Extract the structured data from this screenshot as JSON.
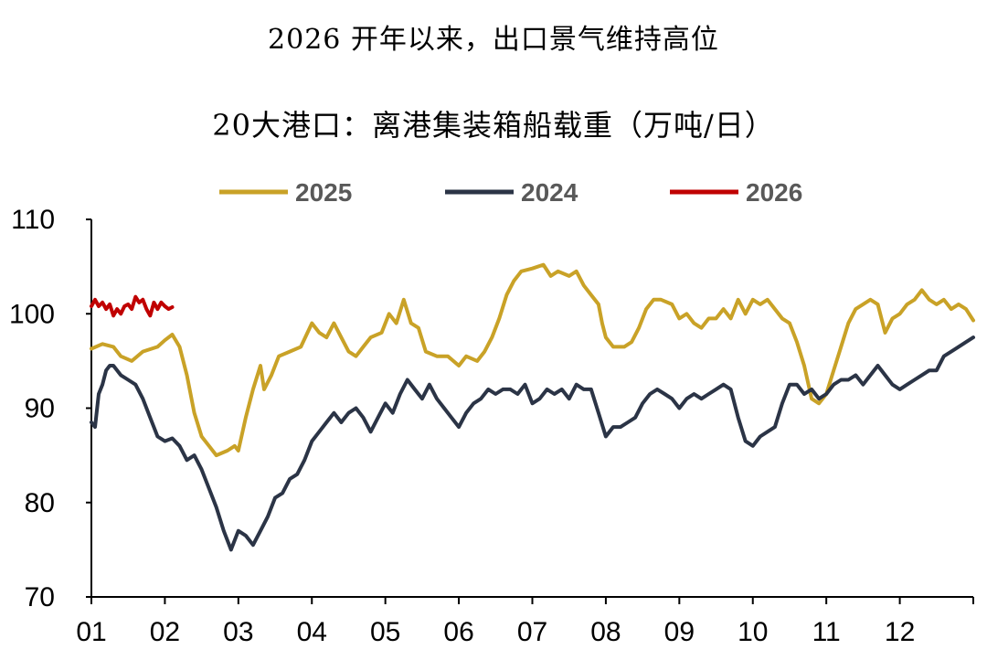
{
  "chart_data": {
    "type": "line",
    "title": "2026 开年以来，出口景气维持高位",
    "subtitle": "20大港口：离港集装箱船载重（万吨/日）",
    "xlabel": "",
    "ylabel": "",
    "ylim": [
      70,
      110
    ],
    "y_ticks": [
      "110",
      "100",
      "90",
      "80",
      "70"
    ],
    "x_tick_labels": [
      "01",
      "02",
      "03",
      "04",
      "05",
      "06",
      "07",
      "08",
      "09",
      "10",
      "11",
      "12"
    ],
    "x_range_months": [
      1,
      13
    ],
    "grid": false,
    "legend_position": "top",
    "series": [
      {
        "name": "2025",
        "color": "#C9A227",
        "points": [
          [
            1.0,
            96.3
          ],
          [
            1.15,
            96.8
          ],
          [
            1.3,
            96.5
          ],
          [
            1.4,
            95.5
          ],
          [
            1.55,
            95.0
          ],
          [
            1.7,
            96.0
          ],
          [
            1.9,
            96.5
          ],
          [
            2.0,
            97.2
          ],
          [
            2.1,
            97.8
          ],
          [
            2.2,
            96.5
          ],
          [
            2.3,
            93.5
          ],
          [
            2.4,
            89.5
          ],
          [
            2.5,
            87.0
          ],
          [
            2.6,
            86.0
          ],
          [
            2.7,
            85.0
          ],
          [
            2.85,
            85.5
          ],
          [
            2.95,
            86.0
          ],
          [
            3.0,
            85.5
          ],
          [
            3.1,
            89.0
          ],
          [
            3.2,
            92.0
          ],
          [
            3.3,
            94.5
          ],
          [
            3.35,
            92.0
          ],
          [
            3.45,
            93.5
          ],
          [
            3.55,
            95.5
          ],
          [
            3.7,
            96.0
          ],
          [
            3.85,
            96.5
          ],
          [
            4.0,
            99.0
          ],
          [
            4.1,
            98.0
          ],
          [
            4.2,
            97.5
          ],
          [
            4.3,
            99.0
          ],
          [
            4.4,
            97.5
          ],
          [
            4.5,
            96.0
          ],
          [
            4.6,
            95.5
          ],
          [
            4.7,
            96.5
          ],
          [
            4.8,
            97.5
          ],
          [
            4.95,
            98.0
          ],
          [
            5.05,
            100.0
          ],
          [
            5.15,
            99.0
          ],
          [
            5.25,
            101.5
          ],
          [
            5.35,
            99.0
          ],
          [
            5.45,
            98.5
          ],
          [
            5.55,
            96.0
          ],
          [
            5.7,
            95.5
          ],
          [
            5.85,
            95.5
          ],
          [
            6.0,
            94.5
          ],
          [
            6.1,
            95.5
          ],
          [
            6.25,
            95.0
          ],
          [
            6.35,
            96.0
          ],
          [
            6.45,
            97.5
          ],
          [
            6.55,
            99.5
          ],
          [
            6.65,
            102.0
          ],
          [
            6.75,
            103.5
          ],
          [
            6.85,
            104.5
          ],
          [
            7.0,
            104.8
          ],
          [
            7.15,
            105.2
          ],
          [
            7.25,
            104.0
          ],
          [
            7.35,
            104.5
          ],
          [
            7.5,
            104.0
          ],
          [
            7.6,
            104.5
          ],
          [
            7.7,
            103.0
          ],
          [
            7.8,
            102.0
          ],
          [
            7.9,
            101.0
          ],
          [
            7.95,
            99.0
          ],
          [
            8.0,
            97.5
          ],
          [
            8.1,
            96.5
          ],
          [
            8.25,
            96.5
          ],
          [
            8.35,
            97.0
          ],
          [
            8.45,
            98.5
          ],
          [
            8.55,
            100.5
          ],
          [
            8.65,
            101.5
          ],
          [
            8.75,
            101.5
          ],
          [
            8.9,
            101.0
          ],
          [
            9.0,
            99.5
          ],
          [
            9.1,
            100.0
          ],
          [
            9.2,
            99.0
          ],
          [
            9.3,
            98.5
          ],
          [
            9.4,
            99.5
          ],
          [
            9.5,
            99.5
          ],
          [
            9.6,
            100.5
          ],
          [
            9.7,
            99.5
          ],
          [
            9.8,
            101.5
          ],
          [
            9.9,
            100.0
          ],
          [
            10.0,
            101.5
          ],
          [
            10.1,
            101.0
          ],
          [
            10.2,
            101.5
          ],
          [
            10.3,
            100.5
          ],
          [
            10.4,
            99.5
          ],
          [
            10.5,
            99.0
          ],
          [
            10.6,
            97.0
          ],
          [
            10.7,
            94.5
          ],
          [
            10.8,
            91.0
          ],
          [
            10.9,
            90.5
          ],
          [
            11.0,
            91.5
          ],
          [
            11.1,
            94.0
          ],
          [
            11.2,
            96.5
          ],
          [
            11.3,
            99.0
          ],
          [
            11.4,
            100.5
          ],
          [
            11.5,
            101.0
          ],
          [
            11.6,
            101.5
          ],
          [
            11.7,
            101.0
          ],
          [
            11.8,
            98.0
          ],
          [
            11.9,
            99.5
          ],
          [
            12.0,
            100.0
          ],
          [
            12.1,
            101.0
          ],
          [
            12.2,
            101.5
          ],
          [
            12.3,
            102.5
          ],
          [
            12.4,
            101.5
          ],
          [
            12.5,
            101.0
          ],
          [
            12.6,
            101.5
          ],
          [
            12.7,
            100.5
          ],
          [
            12.8,
            101.0
          ],
          [
            12.9,
            100.5
          ],
          [
            13.0,
            99.3
          ]
        ]
      },
      {
        "name": "2024",
        "color": "#2B3446",
        "points": [
          [
            1.0,
            88.5
          ],
          [
            1.05,
            88.0
          ],
          [
            1.1,
            91.5
          ],
          [
            1.15,
            92.5
          ],
          [
            1.2,
            94.0
          ],
          [
            1.25,
            94.5
          ],
          [
            1.3,
            94.5
          ],
          [
            1.4,
            93.5
          ],
          [
            1.5,
            93.0
          ],
          [
            1.6,
            92.5
          ],
          [
            1.7,
            91.0
          ],
          [
            1.8,
            89.0
          ],
          [
            1.9,
            87.0
          ],
          [
            2.0,
            86.5
          ],
          [
            2.1,
            86.8
          ],
          [
            2.2,
            86.0
          ],
          [
            2.3,
            84.5
          ],
          [
            2.4,
            85.0
          ],
          [
            2.5,
            83.5
          ],
          [
            2.6,
            81.5
          ],
          [
            2.7,
            79.5
          ],
          [
            2.8,
            77.0
          ],
          [
            2.9,
            75.0
          ],
          [
            3.0,
            77.0
          ],
          [
            3.1,
            76.5
          ],
          [
            3.2,
            75.5
          ],
          [
            3.3,
            77.0
          ],
          [
            3.4,
            78.5
          ],
          [
            3.5,
            80.5
          ],
          [
            3.6,
            81.0
          ],
          [
            3.7,
            82.5
          ],
          [
            3.8,
            83.0
          ],
          [
            3.9,
            84.5
          ],
          [
            4.0,
            86.5
          ],
          [
            4.1,
            87.5
          ],
          [
            4.2,
            88.5
          ],
          [
            4.3,
            89.5
          ],
          [
            4.4,
            88.5
          ],
          [
            4.5,
            89.5
          ],
          [
            4.6,
            90.0
          ],
          [
            4.7,
            89.0
          ],
          [
            4.8,
            87.5
          ],
          [
            4.9,
            89.0
          ],
          [
            5.0,
            90.5
          ],
          [
            5.1,
            89.5
          ],
          [
            5.2,
            91.5
          ],
          [
            5.3,
            93.0
          ],
          [
            5.4,
            92.0
          ],
          [
            5.5,
            91.0
          ],
          [
            5.6,
            92.5
          ],
          [
            5.7,
            91.0
          ],
          [
            5.8,
            90.0
          ],
          [
            5.9,
            89.0
          ],
          [
            6.0,
            88.0
          ],
          [
            6.1,
            89.5
          ],
          [
            6.2,
            90.5
          ],
          [
            6.3,
            91.0
          ],
          [
            6.4,
            92.0
          ],
          [
            6.5,
            91.5
          ],
          [
            6.6,
            92.0
          ],
          [
            6.7,
            92.0
          ],
          [
            6.8,
            91.5
          ],
          [
            6.9,
            92.5
          ],
          [
            7.0,
            90.5
          ],
          [
            7.1,
            91.0
          ],
          [
            7.2,
            92.0
          ],
          [
            7.3,
            91.5
          ],
          [
            7.4,
            92.0
          ],
          [
            7.5,
            91.0
          ],
          [
            7.6,
            92.5
          ],
          [
            7.7,
            92.0
          ],
          [
            7.8,
            92.0
          ],
          [
            7.9,
            89.5
          ],
          [
            8.0,
            87.0
          ],
          [
            8.1,
            88.0
          ],
          [
            8.2,
            88.0
          ],
          [
            8.3,
            88.5
          ],
          [
            8.4,
            89.0
          ],
          [
            8.5,
            90.5
          ],
          [
            8.6,
            91.5
          ],
          [
            8.7,
            92.0
          ],
          [
            8.8,
            91.5
          ],
          [
            8.9,
            91.0
          ],
          [
            9.0,
            90.0
          ],
          [
            9.1,
            91.0
          ],
          [
            9.2,
            91.5
          ],
          [
            9.3,
            91.0
          ],
          [
            9.4,
            91.5
          ],
          [
            9.5,
            92.0
          ],
          [
            9.6,
            92.5
          ],
          [
            9.7,
            92.0
          ],
          [
            9.8,
            89.0
          ],
          [
            9.9,
            86.5
          ],
          [
            10.0,
            86.0
          ],
          [
            10.1,
            87.0
          ],
          [
            10.2,
            87.5
          ],
          [
            10.3,
            88.0
          ],
          [
            10.4,
            90.5
          ],
          [
            10.5,
            92.5
          ],
          [
            10.6,
            92.5
          ],
          [
            10.7,
            91.5
          ],
          [
            10.8,
            92.0
          ],
          [
            10.9,
            91.0
          ],
          [
            11.0,
            91.5
          ],
          [
            11.1,
            92.5
          ],
          [
            11.2,
            93.0
          ],
          [
            11.3,
            93.0
          ],
          [
            11.4,
            93.5
          ],
          [
            11.5,
            92.5
          ],
          [
            11.6,
            93.5
          ],
          [
            11.7,
            94.5
          ],
          [
            11.8,
            93.5
          ],
          [
            11.9,
            92.5
          ],
          [
            12.0,
            92.0
          ],
          [
            12.1,
            92.5
          ],
          [
            12.2,
            93.0
          ],
          [
            12.3,
            93.5
          ],
          [
            12.4,
            94.0
          ],
          [
            12.5,
            94.0
          ],
          [
            12.6,
            95.5
          ],
          [
            12.7,
            96.0
          ],
          [
            12.8,
            96.5
          ],
          [
            12.9,
            97.0
          ],
          [
            13.0,
            97.5
          ]
        ]
      },
      {
        "name": "2026",
        "color": "#C00000",
        "points": [
          [
            1.0,
            100.8
          ],
          [
            1.05,
            101.5
          ],
          [
            1.1,
            100.8
          ],
          [
            1.15,
            101.2
          ],
          [
            1.2,
            100.5
          ],
          [
            1.25,
            101.0
          ],
          [
            1.3,
            99.8
          ],
          [
            1.35,
            100.5
          ],
          [
            1.4,
            100.0
          ],
          [
            1.45,
            100.8
          ],
          [
            1.5,
            101.0
          ],
          [
            1.55,
            100.5
          ],
          [
            1.6,
            101.8
          ],
          [
            1.65,
            101.2
          ],
          [
            1.7,
            101.5
          ],
          [
            1.75,
            100.5
          ],
          [
            1.8,
            99.8
          ],
          [
            1.85,
            101.2
          ],
          [
            1.9,
            100.5
          ],
          [
            1.95,
            101.2
          ],
          [
            2.0,
            100.8
          ],
          [
            2.05,
            100.5
          ],
          [
            2.1,
            100.7
          ]
        ]
      }
    ]
  }
}
